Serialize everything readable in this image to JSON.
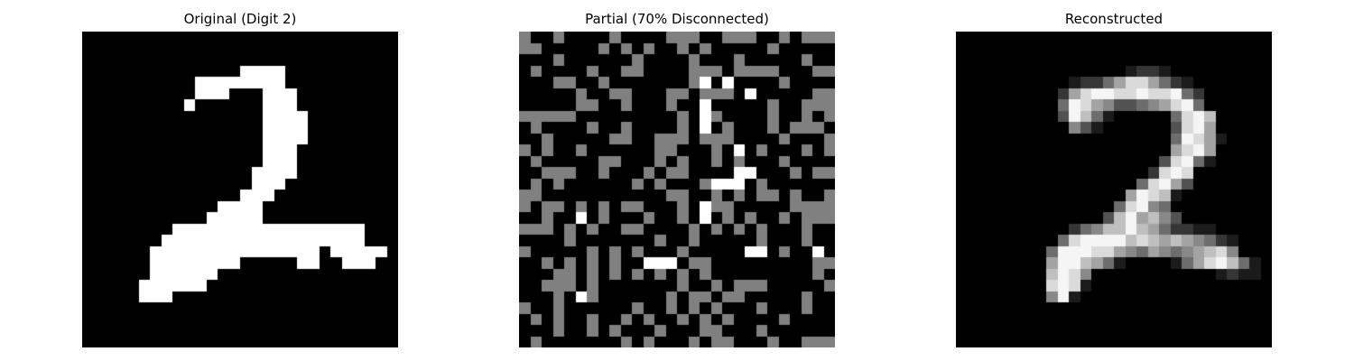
{
  "figure": {
    "grid_size": 28,
    "panels": [
      {
        "id": "original",
        "title": "Original (Digit 2)",
        "image_rows": [
          "............................",
          "............................",
          "............................",
          "..............####..........",
          "..........########..........",
          "..........###...###.........",
          ".........#......###.........",
          "................####........",
          "................####........",
          "................####........",
          "................###.........",
          "................###.........",
          "...............####.........",
          "...............###..........",
          "..............###...........",
          "............####............",
          "...........#####............",
          "........#################...",
          ".......##################...",
          "......###############.#####.",
          "......########.....##..###..",
          "......######................",
          ".....######.................",
          ".....###....................",
          "............................",
          "............................",
          "............................",
          "............................"
        ]
      },
      {
        "id": "partial",
        "title": "Partial (70% Disconnected)",
        "image_rows": [
          "+..+....+....+++..+++..+.+++",
          "++.....+.+.+..+.+.....+.....",
          "...+......+....+...+.....+..",
          ".+....+..++....+++.++++...++",
          "...++..+.......+#.#....+....",
          ".....+..++...++.+++.#.....++",
          ".....++..+...+..#.....+..+++",
          "+++++.........+.#+....+..+.+",
          ".+....+..+....+.#.+...+.+++.",
          "..+.....++..+++.+++....+...+",
          "+.+..+......++...+.#.+...+.+",
          ".+.....++...+.+..+.+...+....",
          "..+++..+...+.++....##...+.++",
          ".+.+......+.+...+###.+......",
          "++...........++..+.+.++.+..+",
          "+.++.+.+.++...+.#++.....++++",
          "..+..#.+...+..+.#.+.+..+.+++",
          "+++.+.+..++....+.+.+.+...+..",
          "....+.......+..+.....+...+..",
          "+.....+.+.+...+.....##.+..#.",
          "..+.+.+.+..###.++.........++",
          "...++.+.+.+.+.+.+.........+.",
          "..+++.+.......+..+.+++.....+",
          "...+.#+......+.++.++.....+..",
          "+..+......+..+.+.+...+...+..",
          ".+.+..+..+.+..+.+.+....+....",
          "...+..+.+...+...++...+......",
          ".+.......+.+...+.++...+..+++"
        ]
      },
      {
        "id": "reconstructed",
        "title": "Reconstructed",
        "image_rows": [
          "............................",
          "............................",
          "............................",
          "...............1221.........",
          "..........12246886421.......",
          ".........2689988988942......",
          ".........4986533456894......",
          ".........39741.....4897.....",
          "..........531......3896.....",
          "...................49861....",
          "...................6896.....",
          "..................38941.....",
          ".................2898.......",
          "................48963.......",
          "...............69871........",
          "..............48954.........",
          ".............3796753........",
          "..........2457797642211.....",
          ".........4899997876765421...",
          "........49998865465456785...",
          "........6997641....14689741.",
          "........7985...........1211.",
          "........8981................",
          "........591.................",
          "............................",
          "............................",
          "............................",
          "............................"
        ]
      }
    ]
  }
}
